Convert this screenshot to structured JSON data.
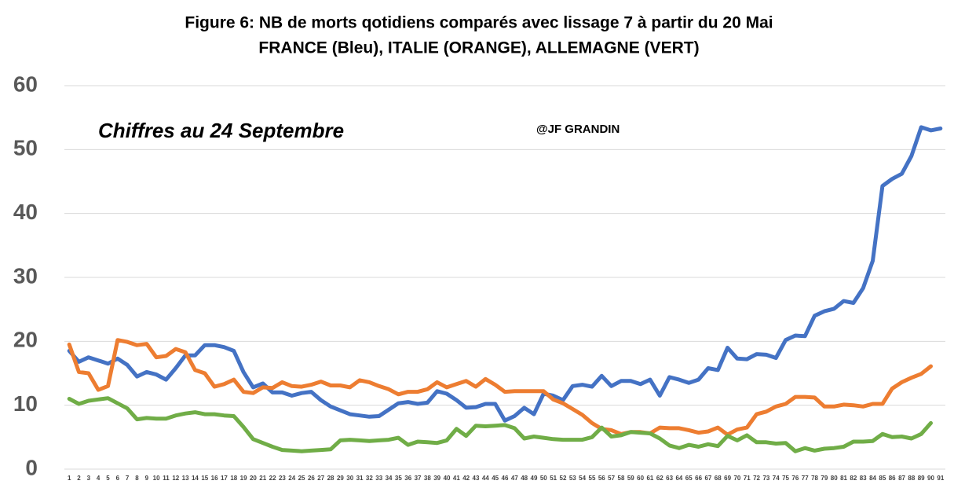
{
  "chart_data": {
    "type": "line",
    "title": "Figure 6: NB de morts qotidiens comparés avec lissage 7 à partir du 20 Mai",
    "subtitle": "FRANCE (Bleu), ITALIE (ORANGE), ALLEMAGNE (VERT)",
    "annotations": [
      "Chiffres au 24 Septembre",
      "@JF GRANDIN"
    ],
    "x": [
      1,
      2,
      3,
      4,
      5,
      6,
      7,
      8,
      9,
      10,
      11,
      12,
      13,
      14,
      15,
      16,
      17,
      18,
      19,
      20,
      21,
      22,
      23,
      24,
      25,
      26,
      27,
      28,
      29,
      30,
      31,
      32,
      33,
      34,
      35,
      36,
      37,
      38,
      39,
      40,
      41,
      42,
      43,
      44,
      45,
      46,
      47,
      48,
      49,
      50,
      51,
      52,
      53,
      54,
      55,
      56,
      57,
      58,
      59,
      60,
      61,
      62,
      63,
      64,
      65,
      66,
      67,
      68,
      69,
      70,
      71,
      72,
      73,
      74,
      75,
      76,
      77,
      78,
      79,
      80,
      81,
      82,
      83,
      84,
      85,
      86,
      87,
      88,
      89,
      90,
      91
    ],
    "xlim": [
      0.5,
      91.5
    ],
    "ylim": [
      0,
      60
    ],
    "yticks": [
      0,
      10,
      20,
      30,
      40,
      50,
      60
    ],
    "grid": true,
    "series": [
      {
        "color": "#4472c4",
        "values": [
          18.5,
          16.8,
          17.5,
          17,
          16.5,
          17.3,
          16.3,
          14.5,
          15.2,
          14.8,
          14,
          15.8,
          17.8,
          17.8,
          19.4,
          19.4,
          19.1,
          18.5,
          15.2,
          12.8,
          13.4,
          12,
          12,
          11.5,
          11.9,
          12.1,
          10.8,
          9.8,
          9.2,
          8.6,
          8.4,
          8.2,
          8.3,
          9.3,
          10.3,
          10.5,
          10.2,
          10.4,
          12.2,
          11.8,
          10.8,
          9.6,
          9.7,
          10.2,
          10.2,
          7.6,
          8.3,
          9.6,
          8.6,
          11.8,
          11.5,
          10.8,
          13,
          13.2,
          12.9,
          14.6,
          13,
          13.8,
          13.8,
          13.3,
          14,
          11.5,
          14.4,
          14,
          13.5,
          14,
          15.8,
          15.5,
          19,
          17.3,
          17.2,
          18,
          17.9,
          17.4,
          20.2,
          20.9,
          20.8,
          24,
          24.7,
          25.1,
          26.3,
          26,
          28.3,
          32.6,
          44.3,
          45.4,
          46.2,
          49,
          53.5,
          53,
          53.3
        ]
      },
      {
        "color": "#ed7d31",
        "values": [
          19.5,
          15.2,
          15,
          12.4,
          13,
          20.2,
          19.9,
          19.4,
          19.6,
          17.5,
          17.7,
          18.8,
          18.3,
          15.5,
          15,
          12.9,
          13.3,
          14,
          12.1,
          11.9,
          12.8,
          12.7,
          13.6,
          13,
          12.9,
          13.2,
          13.7,
          13.1,
          13.1,
          12.8,
          13.9,
          13.6,
          13,
          12.5,
          11.7,
          12.1,
          12.1,
          12.5,
          13.6,
          12.8,
          13.3,
          13.8,
          12.9,
          14.1,
          13.2,
          12.1,
          12.2,
          12.2,
          12.2,
          12.2,
          10.9,
          10.3,
          9.4,
          8.5,
          7.2,
          6.3,
          6.1,
          5.5,
          5.8,
          5.8,
          5.6,
          6.5,
          6.4,
          6.4,
          6.1,
          5.7,
          5.9,
          6.5,
          5.4,
          6.2,
          6.5,
          8.6,
          9,
          9.8,
          10.2,
          11.3,
          11.3,
          11.2,
          9.8,
          9.8,
          10.1,
          10,
          9.8,
          10.2,
          10.2,
          12.6,
          13.6,
          14.3,
          14.9,
          16.1,
          null
        ]
      },
      {
        "color": "#70ad47",
        "values": [
          11,
          10.2,
          10.7,
          10.9,
          11.1,
          10.3,
          9.5,
          7.8,
          8,
          7.9,
          7.9,
          8.4,
          8.7,
          8.9,
          8.6,
          8.6,
          8.4,
          8.3,
          6.6,
          4.7,
          4.1,
          3.5,
          3,
          2.9,
          2.8,
          2.9,
          3,
          3.1,
          4.5,
          4.6,
          4.5,
          4.4,
          4.5,
          4.6,
          4.9,
          3.8,
          4.3,
          4.2,
          4.1,
          4.5,
          6.3,
          5.2,
          6.8,
          6.7,
          6.8,
          6.9,
          6.4,
          4.8,
          5.1,
          4.9,
          4.7,
          4.6,
          4.6,
          4.6,
          5,
          6.5,
          5.1,
          5.3,
          5.8,
          5.7,
          5.6,
          4.8,
          3.7,
          3.3,
          3.8,
          3.5,
          3.9,
          3.6,
          5.2,
          4.5,
          5.3,
          4.2,
          4.2,
          4,
          4.1,
          2.8,
          3.3,
          2.9,
          3.2,
          3.3,
          3.5,
          4.3,
          4.3,
          4.4,
          5.5,
          5,
          5.1,
          4.8,
          5.5,
          7.2,
          null
        ]
      }
    ]
  }
}
